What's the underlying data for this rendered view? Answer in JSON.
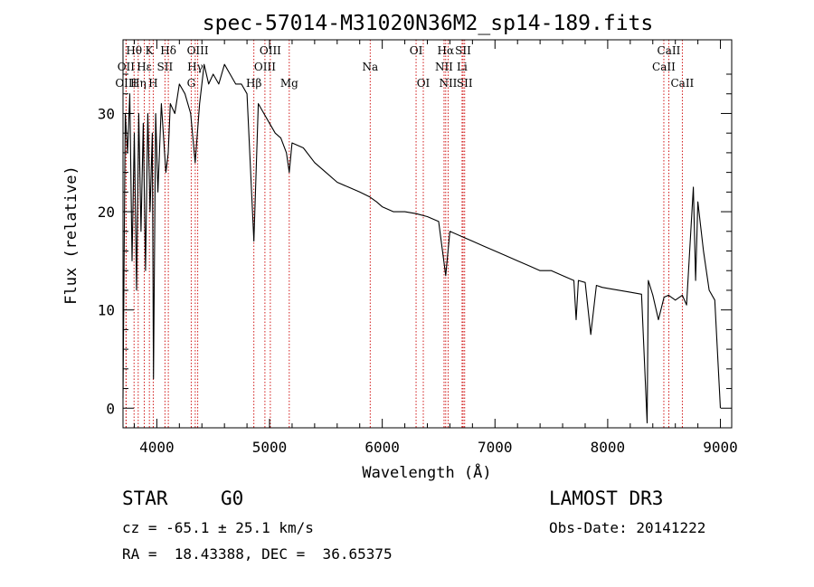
{
  "chart_data": {
    "type": "line",
    "title": "spec-57014-M31020N36M2_sp14-189.fits",
    "xlabel": "Wavelength (Å)",
    "ylabel": "Flux (relative)",
    "xlim": [
      3700,
      9100
    ],
    "ylim": [
      -2,
      37.5
    ],
    "xticks": [
      4000,
      5000,
      6000,
      7000,
      8000,
      9000
    ],
    "yticks": [
      0,
      10,
      20,
      30
    ],
    "series": [
      {
        "name": "spectrum",
        "x": [
          3700,
          3720,
          3740,
          3760,
          3780,
          3800,
          3820,
          3840,
          3860,
          3880,
          3900,
          3920,
          3940,
          3960,
          3970,
          3990,
          4010,
          4040,
          4080,
          4101,
          4120,
          4160,
          4200,
          4250,
          4300,
          4340,
          4380,
          4420,
          4460,
          4500,
          4550,
          4600,
          4650,
          4700,
          4750,
          4800,
          4861,
          4900,
          4950,
          5000,
          5050,
          5100,
          5150,
          5175,
          5200,
          5300,
          5400,
          5500,
          5600,
          5700,
          5800,
          5890,
          5950,
          6000,
          6100,
          6200,
          6300,
          6400,
          6500,
          6563,
          6600,
          6700,
          6800,
          6900,
          7000,
          7100,
          7200,
          7300,
          7400,
          7500,
          7600,
          7700,
          7720,
          7740,
          7800,
          7850,
          7900,
          7950,
          8000,
          8100,
          8200,
          8300,
          8350,
          8360,
          8400,
          8450,
          8500,
          8540,
          8600,
          8662,
          8700,
          8760,
          8780,
          8800,
          8850,
          8900,
          8950,
          9000
        ],
        "y": [
          1,
          30,
          26,
          32,
          15,
          28,
          12,
          30,
          18,
          29,
          14,
          30,
          20,
          28,
          3,
          30,
          22,
          31,
          24,
          26,
          31,
          30,
          33,
          32,
          30,
          25,
          31,
          35,
          33,
          34,
          33,
          35,
          34,
          33,
          33,
          32,
          17,
          31,
          30,
          29,
          28,
          27.5,
          26,
          24,
          27,
          26.5,
          25,
          24,
          23,
          22.5,
          22,
          21.5,
          21,
          20.5,
          20,
          20,
          19.8,
          19.5,
          19,
          13.5,
          18,
          17.5,
          17,
          16.5,
          16,
          15.5,
          15,
          14.5,
          14,
          14,
          13.5,
          13,
          9,
          13,
          12.8,
          7.5,
          12.5,
          12.3,
          12.2,
          12,
          11.8,
          11.6,
          -1.5,
          13,
          11.5,
          9,
          11.3,
          11.5,
          11,
          11.5,
          10.5,
          22.5,
          13,
          21,
          16,
          12,
          11,
          0
        ]
      }
    ],
    "lines": [
      {
        "label": "Hθ",
        "wave": 3798,
        "row": 1
      },
      {
        "label": "OII",
        "wave": 3727,
        "row": 2
      },
      {
        "label": "OIII",
        "wave": 3727,
        "row": 3
      },
      {
        "label": "Hη",
        "wave": 3835,
        "row": 3
      },
      {
        "label": "K",
        "wave": 3934,
        "row": 1
      },
      {
        "label": "Hε",
        "wave": 3889,
        "row": 2
      },
      {
        "label": "H",
        "wave": 3968,
        "row": 3
      },
      {
        "label": "SII",
        "wave": 4072,
        "row": 2
      },
      {
        "label": "Hδ",
        "wave": 4102,
        "row": 1
      },
      {
        "label": "OIII",
        "wave": 4363,
        "row": 1
      },
      {
        "label": "Hγ",
        "wave": 4341,
        "row": 2
      },
      {
        "label": "G",
        "wave": 4305,
        "row": 3
      },
      {
        "label": "Hβ",
        "wave": 4861,
        "row": 3
      },
      {
        "label": "OIII",
        "wave": 5007,
        "row": 1
      },
      {
        "label": "OIII",
        "wave": 4959,
        "row": 2
      },
      {
        "label": "Mg",
        "wave": 5175,
        "row": 3
      },
      {
        "label": "Na",
        "wave": 5893,
        "row": 2
      },
      {
        "label": "OI",
        "wave": 6300,
        "row": 1
      },
      {
        "label": "OI",
        "wave": 6364,
        "row": 3
      },
      {
        "label": "Hα",
        "wave": 6563,
        "row": 1
      },
      {
        "label": "NII",
        "wave": 6548,
        "row": 2
      },
      {
        "label": "NII",
        "wave": 6584,
        "row": 3
      },
      {
        "label": "SII",
        "wave": 6717,
        "row": 1
      },
      {
        "label": "Li",
        "wave": 6708,
        "row": 2
      },
      {
        "label": "SII",
        "wave": 6731,
        "row": 3
      },
      {
        "label": "CaII",
        "wave": 8542,
        "row": 1
      },
      {
        "label": "CaII",
        "wave": 8498,
        "row": 2
      },
      {
        "label": "CaII",
        "wave": 8662,
        "row": 3
      }
    ],
    "grid": false,
    "legend": "none"
  },
  "info": {
    "class": "STAR",
    "subclass": "G0",
    "survey": "LAMOST DR3",
    "cz": "cz = -65.1 ± 25.1 km/s",
    "obs_date": "Obs-Date: 20141222",
    "coords": "RA =  18.43388, DEC =  36.65375"
  },
  "colors": {
    "line": "#cc0000",
    "spectrum": "#000000"
  }
}
